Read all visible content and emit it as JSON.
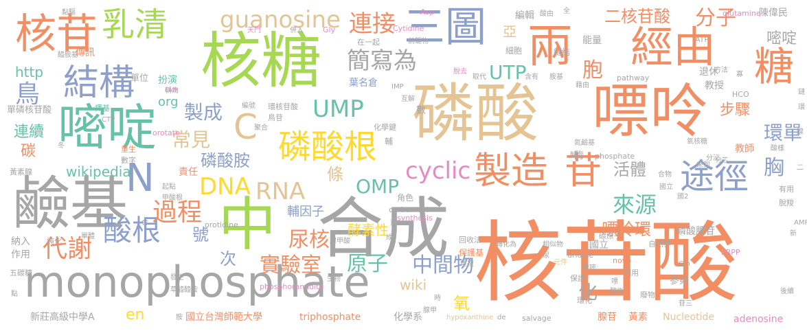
{
  "colors": {
    "orange": "#f28e64",
    "gray": "#a6a6a6",
    "green": "#a6d854",
    "blue": "#8da0cb",
    "teal": "#66c2a5",
    "tan": "#e5c494",
    "yellow": "#ffd92f",
    "pink": "#e78ac3"
  },
  "words": {
    "w1": "核苷酸",
    "w2": "磷酸",
    "w3": "嘌呤",
    "w4": "核糖",
    "w5": "合成",
    "w6": "中",
    "w7": "鹼基",
    "w8": "monophosphate",
    "w9": "嘧啶",
    "w10": "核苷",
    "w11": "乳清",
    "w12": "結構",
    "w13": "兩",
    "w14": "三圖",
    "w15": "經由",
    "w16": "糖",
    "w17": "磷酸根",
    "w18": "製造",
    "w19": "苷",
    "w20": "途徑",
    "w21": "guanosine",
    "w22": "連接",
    "w23": "簡寫為",
    "w24": "UMP",
    "w25": "C",
    "w26": "N",
    "w27": "cyclic",
    "w28": "DNA",
    "w29": "RNA",
    "w30": "分子",
    "w31": "酸根",
    "w32": "代謝",
    "w33": "過程",
    "w34": "來源",
    "w35": "胞",
    "w36": "環單",
    "w37": "嘌呤環",
    "w38": "中間物",
    "w39": "實驗室",
    "w40": "原子",
    "w41": "尿核",
    "w42": "UTP",
    "w43": "OMP",
    "w44": "常見",
    "w45": "製成",
    "w46": "磷酸胺",
    "w47": "鳥",
    "w48": "http",
    "w49": "org",
    "w50": "wikipedia",
    "w51": "連續",
    "w52": "碳",
    "w53": "en",
    "w54": "wiki",
    "w55": "氧",
    "w56": "條",
    "w57": "化",
    "w58": "號",
    "w59": "次",
    "w60": "酵素性",
    "w61": "輔因子",
    "w62": "胸",
    "w63": "活體",
    "w64": "步驟",
    "w65": "二核苷酸",
    "w66": "嘧啶",
    "w67": "亞",
    "w68": "退休",
    "w69": "教授",
    "w70": "教師",
    "w71": "陳偉民",
    "w72": "磷酸腺苷",
    "w73": "國立",
    "w74": "葉名倉",
    "w75": "能量",
    "w76": "細胞",
    "w77": "鏈結",
    "w78": "編輯",
    "w79": "新莊高級中學A",
    "w80": "國立台灣師範大學",
    "w81": "triphosphate",
    "w82": "化學系",
    "w83": "腺苷",
    "w84": "黃素",
    "w85": "Nucleotide",
    "w86": "adenosine",
    "w87": "phosphoramidite",
    "w88": "參與",
    "w89": "環化",
    "w90": "廢物",
    "w91": "利用",
    "w92": "保護基",
    "w93": "回收法",
    "w94": "salvage",
    "w95": "hypoxanthine",
    "w96": "novo",
    "w97": "uridine",
    "w98": "PRPP",
    "w99": "orotate",
    "w100": "orotidine",
    "w101": "carbamoyl",
    "w102": "synthesis",
    "w103": "pathway",
    "w104": "phosphate",
    "w105": "glutamine",
    "w106": "Cytidine",
    "w107": "Asp",
    "w108": "Gly",
    "w109": "ATP",
    "w110": "HCO",
    "w111": "單磷核苷酸",
    "w112": "傳訊",
    "w113": "單位",
    "w114": "扮演",
    "w115": "角色",
    "w116": "責任",
    "w117": "納入",
    "w118": "作用",
    "w119": "五碳糖",
    "w120": "純化",
    "w121": "黃素腺",
    "w122": "數字",
    "w123": "重生",
    "w124": "在一起",
    "w125": "天門",
    "w126": "併入",
    "w127": "前驅物",
    "w128": "方法",
    "w129": "自然界",
    "w130": "相似物",
    "w131": "碳原子",
    "w132": "元件",
    "w133": "後續",
    "w134": "有用",
    "w135": "脫羧",
    "w136": "氧核糖",
    "w137": "分泌",
    "w138": "氮鹼基",
    "w139": "化學鍵",
    "w140": "輔",
    "w141": "數",
    "w142": "互解",
    "w143": "鳥苷",
    "w144": "聚合",
    "w145": "環核苷酸",
    "w146": "編號",
    "w147": "稱為",
    "w148": "擇基",
    "w149": "冬",
    "w150": "CTP",
    "w151": "CMP",
    "w152": "黏驅",
    "w153": "醯胺基",
    "w154": "取代",
    "w155": "脫去",
    "w156": "酸由",
    "w157": "全",
    "w158": "含有",
    "w159": "胺基",
    "w160": "藉由",
    "w161": "起點",
    "w162": "甲酸根",
    "w163": "單體",
    "w164": "發生",
    "w165": "草醯醯胺",
    "w166": "生物",
    "w167": "重複",
    "w168": "轉化為",
    "w169": "保護",
    "w170": "酸嘧",
    "w171": "腺甲酸",
    "w172": "合物",
    "w173": "來到",
    "w174": "國立",
    "w175": "IMP",
    "w176": "Gln",
    "w177": "AMP",
    "w178": "de",
    "w179": "胺",
    "w180": "時",
    "w181": "苷三",
    "w182": "點",
    "w183": "酸後",
    "w184": "寡",
    "w185": "醣",
    "w186": "尿",
    "w187": "黃",
    "w188": "成",
    "w189": "二",
    "w190": "新",
    "w191": "酶",
    "w192": "腺甲",
    "w193": "合",
    "w194": "嘌",
    "w195": "國2",
    "w196": "分芯",
    "w197": "腺",
    "w198": "環",
    "w199": "鏈",
    "w200": "酸樣"
  }
}
